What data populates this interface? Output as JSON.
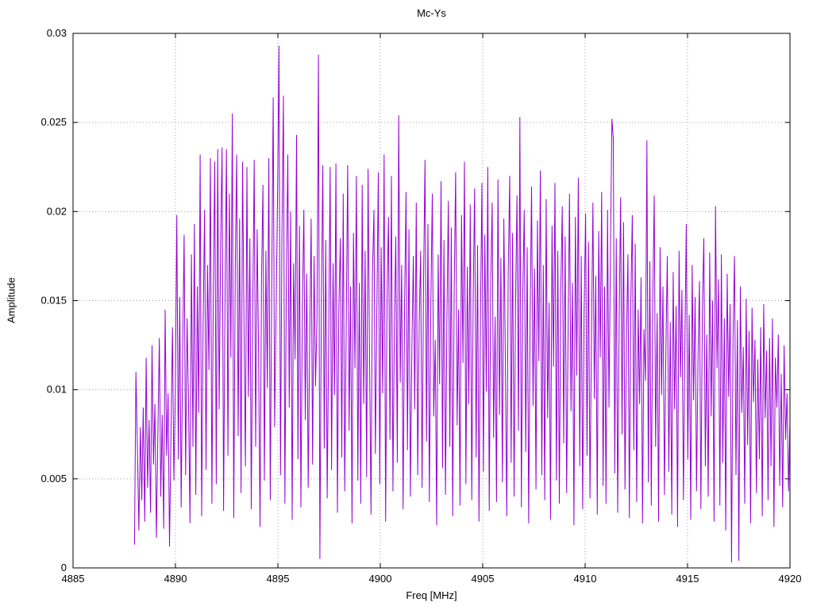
{
  "chart_data": {
    "type": "line",
    "title": "Mc-Ys",
    "xlabel": "Freq [MHz]",
    "ylabel": "Amplitude",
    "xlim": [
      4885,
      4920
    ],
    "ylim": [
      0,
      0.03
    ],
    "grid": true,
    "legend": "none",
    "line_color": "#9400d3",
    "x_ticks": [
      4885,
      4890,
      4895,
      4900,
      4905,
      4910,
      4915,
      4920
    ],
    "x_tick_labels": [
      "4885",
      "4890",
      "4895",
      "4900",
      "4905",
      "4910",
      "4915",
      "4920"
    ],
    "y_ticks": [
      0,
      0.005,
      0.01,
      0.015,
      0.02,
      0.025,
      0.03
    ],
    "y_tick_labels": [
      "0",
      "0.005",
      "0.01",
      "0.015",
      "0.02",
      "0.025",
      "0.03"
    ],
    "series": [
      {
        "name": "Mc-Ys",
        "x_start": 4888.0,
        "x_end": 4920.0,
        "values": [
          0.0013,
          0.011,
          0.0066,
          0.0021,
          0.0079,
          0.0038,
          0.009,
          0.0026,
          0.0118,
          0.0045,
          0.0083,
          0.0031,
          0.0125,
          0.0058,
          0.0092,
          0.0017,
          0.0074,
          0.0129,
          0.004,
          0.0086,
          0.0022,
          0.0145,
          0.0063,
          0.0098,
          0.0012,
          0.0076,
          0.0135,
          0.0049,
          0.0102,
          0.0198,
          0.0061,
          0.0152,
          0.0034,
          0.0121,
          0.0187,
          0.0052,
          0.014,
          0.0095,
          0.0025,
          0.0176,
          0.0068,
          0.0193,
          0.0041,
          0.0158,
          0.0087,
          0.0232,
          0.0029,
          0.0135,
          0.0201,
          0.0055,
          0.017,
          0.0111,
          0.023,
          0.0036,
          0.0156,
          0.0228,
          0.0047,
          0.0235,
          0.0089,
          0.0181,
          0.0236,
          0.0032,
          0.015,
          0.0235,
          0.0063,
          0.021,
          0.0118,
          0.0255,
          0.0028,
          0.0167,
          0.0232,
          0.0074,
          0.0196,
          0.0042,
          0.0228,
          0.0139,
          0.0057,
          0.0225,
          0.0096,
          0.0185,
          0.0033,
          0.0144,
          0.0229,
          0.0068,
          0.019,
          0.012,
          0.0023,
          0.0162,
          0.0215,
          0.0049,
          0.0178,
          0.0101,
          0.023,
          0.0038,
          0.0155,
          0.0264,
          0.0079,
          0.0146,
          0.021,
          0.0293,
          0.0052,
          0.0186,
          0.0265,
          0.0036,
          0.0158,
          0.0232,
          0.009,
          0.02,
          0.0027,
          0.0171,
          0.0117,
          0.0243,
          0.0061,
          0.0192,
          0.0034,
          0.0148,
          0.0201,
          0.0083,
          0.0165,
          0.0045,
          0.0128,
          0.0196,
          0.0058,
          0.0175,
          0.0102,
          0.0139,
          0.0288,
          0.0005,
          0.015,
          0.0226,
          0.0067,
          0.0184,
          0.0039,
          0.0128,
          0.0225,
          0.0055,
          0.0171,
          0.0097,
          0.0227,
          0.0031,
          0.0146,
          0.0185,
          0.0062,
          0.021,
          0.0043,
          0.0132,
          0.0226,
          0.0077,
          0.0158,
          0.0025,
          0.0188,
          0.0112,
          0.022,
          0.0049,
          0.016,
          0.0036,
          0.0215,
          0.0092,
          0.0178,
          0.0051,
          0.0224,
          0.0121,
          0.003,
          0.0165,
          0.0201,
          0.0064,
          0.0142,
          0.0222,
          0.0047,
          0.018,
          0.0098,
          0.0232,
          0.0026,
          0.0151,
          0.0197,
          0.0072,
          0.022,
          0.0043,
          0.0135,
          0.0186,
          0.0059,
          0.0254,
          0.0104,
          0.017,
          0.0033,
          0.0148,
          0.0211,
          0.0066,
          0.019,
          0.004,
          0.0124,
          0.0175,
          0.0089,
          0.0205,
          0.0052,
          0.0137,
          0.0178,
          0.0045,
          0.0162,
          0.0229,
          0.0071,
          0.0193,
          0.0037,
          0.015,
          0.021,
          0.0085,
          0.0128,
          0.0024,
          0.0176,
          0.0103,
          0.0217,
          0.0056,
          0.0184,
          0.0041,
          0.0139,
          0.0206,
          0.0068,
          0.0191,
          0.0029,
          0.0157,
          0.0222,
          0.008,
          0.0145,
          0.0035,
          0.0198,
          0.0115,
          0.0228,
          0.0047,
          0.0169,
          0.0092,
          0.0204,
          0.0038,
          0.0152,
          0.0213,
          0.0062,
          0.0181,
          0.0026,
          0.0143,
          0.0216,
          0.0054,
          0.0187,
          0.0099,
          0.0225,
          0.0032,
          0.016,
          0.0205,
          0.0073,
          0.0141,
          0.0037,
          0.0218,
          0.0086,
          0.0174,
          0.0048,
          0.0196,
          0.0122,
          0.0029,
          0.0165,
          0.022,
          0.0059,
          0.0188,
          0.004,
          0.0147,
          0.0209,
          0.0077,
          0.0253,
          0.0034,
          0.0156,
          0.0201,
          0.0065,
          0.018,
          0.0025,
          0.0138,
          0.0214,
          0.0091,
          0.0168,
          0.0044,
          0.0195,
          0.0116,
          0.0223,
          0.0052,
          0.017,
          0.0038,
          0.0207,
          0.0084,
          0.0149,
          0.0027,
          0.0192,
          0.0113,
          0.0216,
          0.0049,
          0.0178,
          0.0036,
          0.0155,
          0.0203,
          0.007,
          0.0186,
          0.0042,
          0.0131,
          0.021,
          0.0088,
          0.016,
          0.0024,
          0.0197,
          0.0108,
          0.0219,
          0.0057,
          0.0175,
          0.0033,
          0.0144,
          0.0199,
          0.0063,
          0.0183,
          0.0039,
          0.0126,
          0.0205,
          0.0095,
          0.0164,
          0.003,
          0.0189,
          0.0118,
          0.0211,
          0.0046,
          0.0158,
          0.0036,
          0.0201,
          0.009,
          0.0171,
          0.0252,
          0.0241,
          0.0053,
          0.0185,
          0.0031,
          0.014,
          0.0208,
          0.0075,
          0.0194,
          0.0044,
          0.0129,
          0.0176,
          0.0028,
          0.0151,
          0.0198,
          0.0066,
          0.0182,
          0.0037,
          0.0145,
          0.0092,
          0.0163,
          0.0025,
          0.0134,
          0.0105,
          0.024,
          0.0048,
          0.0172,
          0.0035,
          0.015,
          0.0209,
          0.0068,
          0.0143,
          0.0026,
          0.018,
          0.0097,
          0.0158,
          0.0041,
          0.0122,
          0.0175,
          0.0054,
          0.0138,
          0.003,
          0.0166,
          0.0089,
          0.0147,
          0.0023,
          0.0178,
          0.0107,
          0.0156,
          0.0038,
          0.0125,
          0.0193,
          0.0061,
          0.0142,
          0.0027,
          0.017,
          0.0094,
          0.0152,
          0.0043,
          0.0118,
          0.0161,
          0.0033,
          0.0146,
          0.0185,
          0.0057,
          0.0131,
          0.004,
          0.0177,
          0.0085,
          0.015,
          0.0026,
          0.0203,
          0.0112,
          0.0162,
          0.0035,
          0.0176,
          0.0059,
          0.014,
          0.0021,
          0.0165,
          0.0096,
          0.0148,
          0.0003,
          0.013,
          0.0175,
          0.0052,
          0.0139,
          0.0004,
          0.0158,
          0.0087,
          0.0124,
          0.0036,
          0.0151,
          0.0069,
          0.0133,
          0.0025,
          0.0146,
          0.0093,
          0.0128,
          0.0042,
          0.0117,
          0.0061,
          0.0135,
          0.0029,
          0.0148,
          0.0084,
          0.0122,
          0.0038,
          0.0129,
          0.0057,
          0.014,
          0.0023,
          0.0118,
          0.009,
          0.0131,
          0.0046,
          0.0109,
          0.0034,
          0.0125,
          0.0072,
          0.0098,
          0.0043,
          0.0082
        ]
      }
    ]
  }
}
